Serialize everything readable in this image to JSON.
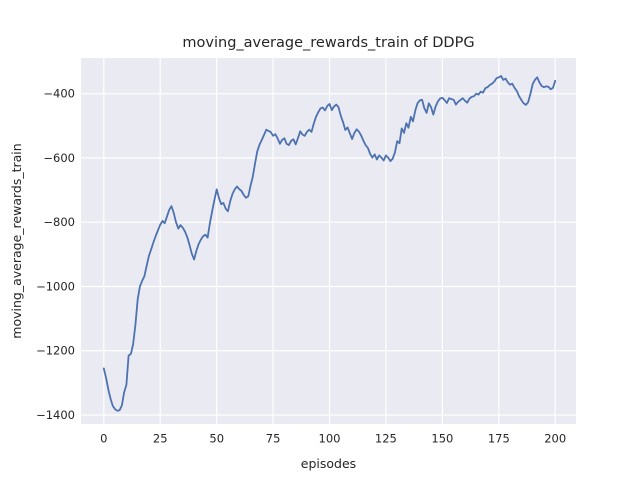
{
  "chart_data": {
    "type": "line",
    "title": "moving_average_rewards_train of DDPG",
    "xlabel": "episodes",
    "ylabel": "moving_average_rewards_train",
    "grid": true,
    "legend_position": "none",
    "axes_background": "#eaeaf2",
    "figure_background": "#ffffff",
    "grid_color": "#ffffff",
    "text_color": "#262626",
    "xlim": [
      -10.1,
      209.2
    ],
    "ylim": [
      -1428,
      -289
    ],
    "xticks": [
      0,
      25,
      50,
      75,
      100,
      125,
      150,
      175,
      200
    ],
    "yticks": [
      -400,
      -600,
      -800,
      -1000,
      -1200,
      -1400
    ],
    "xtick_labels": [
      "0",
      "25",
      "50",
      "75",
      "100",
      "125",
      "150",
      "175",
      "200"
    ],
    "ytick_labels": [
      "−400",
      "−600",
      "−800",
      "−1000",
      "−1200",
      "−1400"
    ],
    "series": [
      {
        "name": "moving_average_rewards_train",
        "color": "#4c72b0",
        "line_width": 1.8,
        "x_start": 0,
        "x_step": 1,
        "values": [
          -1255,
          -1285,
          -1320,
          -1350,
          -1372,
          -1382,
          -1387,
          -1385,
          -1370,
          -1330,
          -1306,
          -1215,
          -1210,
          -1180,
          -1120,
          -1040,
          -1000,
          -982,
          -968,
          -935,
          -905,
          -884,
          -862,
          -843,
          -825,
          -808,
          -796,
          -803,
          -782,
          -761,
          -750,
          -772,
          -800,
          -820,
          -809,
          -817,
          -830,
          -847,
          -872,
          -898,
          -916,
          -890,
          -868,
          -854,
          -844,
          -839,
          -848,
          -803,
          -767,
          -731,
          -698,
          -724,
          -744,
          -740,
          -758,
          -766,
          -735,
          -712,
          -698,
          -689,
          -697,
          -703,
          -715,
          -724,
          -719,
          -687,
          -658,
          -618,
          -579,
          -559,
          -544,
          -528,
          -512,
          -516,
          -520,
          -531,
          -526,
          -539,
          -556,
          -544,
          -539,
          -556,
          -560,
          -547,
          -542,
          -558,
          -539,
          -517,
          -527,
          -531,
          -519,
          -512,
          -519,
          -494,
          -472,
          -458,
          -446,
          -443,
          -452,
          -438,
          -432,
          -451,
          -440,
          -434,
          -442,
          -469,
          -489,
          -513,
          -505,
          -523,
          -541,
          -523,
          -511,
          -518,
          -530,
          -546,
          -560,
          -569,
          -587,
          -599,
          -589,
          -605,
          -592,
          -599,
          -608,
          -592,
          -599,
          -610,
          -602,
          -582,
          -548,
          -554,
          -508,
          -522,
          -492,
          -506,
          -472,
          -486,
          -452,
          -430,
          -421,
          -419,
          -445,
          -460,
          -430,
          -442,
          -465,
          -440,
          -424,
          -415,
          -413,
          -420,
          -429,
          -414,
          -417,
          -419,
          -434,
          -425,
          -420,
          -414,
          -422,
          -428,
          -415,
          -410,
          -408,
          -400,
          -403,
          -394,
          -397,
          -383,
          -380,
          -373,
          -369,
          -362,
          -352,
          -349,
          -345,
          -357,
          -353,
          -365,
          -372,
          -369,
          -382,
          -392,
          -408,
          -420,
          -430,
          -435,
          -427,
          -401,
          -370,
          -357,
          -349,
          -365,
          -376,
          -380,
          -377,
          -379,
          -386,
          -382,
          -360
        ]
      }
    ]
  }
}
